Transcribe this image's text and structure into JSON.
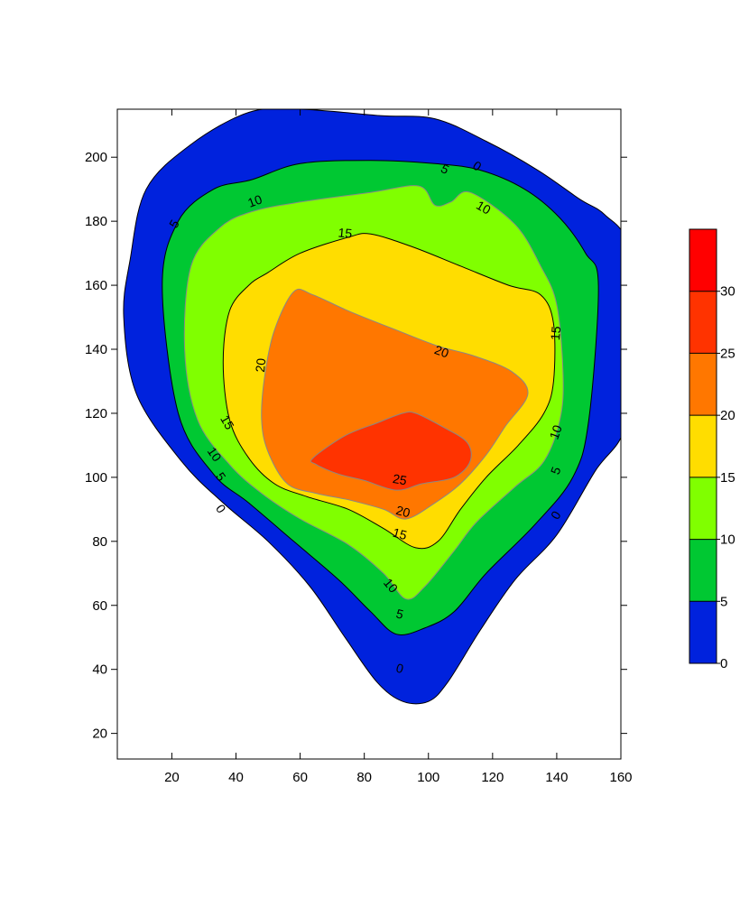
{
  "chart_data": {
    "type": "filled-contour",
    "title": "",
    "xlabel": "",
    "ylabel": "",
    "xlim": [
      3,
      160
    ],
    "ylim": [
      12,
      215
    ],
    "x_ticks": [
      20,
      40,
      60,
      80,
      100,
      120,
      140,
      160
    ],
    "y_ticks": [
      20,
      40,
      60,
      80,
      100,
      120,
      140,
      160,
      180,
      200
    ],
    "contour_levels": [
      0,
      5,
      10,
      15,
      20,
      25,
      30
    ],
    "colorbar": {
      "ticks": [
        0,
        5,
        10,
        15,
        20,
        25,
        30
      ],
      "range": [
        0,
        35
      ],
      "bands": [
        {
          "from": 0,
          "to": 5,
          "color": "#0022DD"
        },
        {
          "from": 5,
          "to": 10,
          "color": "#00C832"
        },
        {
          "from": 10,
          "to": 15,
          "color": "#80FF00"
        },
        {
          "from": 15,
          "to": 20,
          "color": "#FFDD00"
        },
        {
          "from": 20,
          "to": 25,
          "color": "#FF7700"
        },
        {
          "from": 25,
          "to": 30,
          "color": "#FF3300"
        },
        {
          "from": 30,
          "to": 35,
          "color": "#FF0000"
        }
      ]
    },
    "regions": [
      {
        "level": 0,
        "color": "#0022DD",
        "outline": "#000000",
        "points": [
          [
            44,
            214
          ],
          [
            60,
            215
          ],
          [
            85,
            213
          ],
          [
            102,
            212
          ],
          [
            118,
            205
          ],
          [
            134,
            196
          ],
          [
            147,
            187
          ],
          [
            155,
            182
          ],
          [
            162,
            172
          ],
          [
            163,
            140
          ],
          [
            161,
            115
          ],
          [
            152,
            102
          ],
          [
            140,
            82
          ],
          [
            127,
            68
          ],
          [
            116,
            52
          ],
          [
            106,
            36
          ],
          [
            100,
            30
          ],
          [
            92,
            30
          ],
          [
            84,
            36
          ],
          [
            74,
            50
          ],
          [
            63,
            66
          ],
          [
            50,
            80
          ],
          [
            36,
            92
          ],
          [
            23,
            105
          ],
          [
            9,
            126
          ],
          [
            5,
            150
          ],
          [
            7,
            168
          ],
          [
            12,
            190
          ],
          [
            26,
            204
          ]
        ]
      },
      {
        "level": 5,
        "color": "#00C832",
        "outline": "#000000",
        "points": [
          [
            45,
            193
          ],
          [
            60,
            198
          ],
          [
            82,
            199
          ],
          [
            102,
            198
          ],
          [
            116,
            196
          ],
          [
            130,
            190
          ],
          [
            141,
            181
          ],
          [
            149,
            170
          ],
          [
            153,
            160
          ],
          [
            150,
            118
          ],
          [
            145,
            100
          ],
          [
            133,
            85
          ],
          [
            118,
            70
          ],
          [
            108,
            58
          ],
          [
            99,
            53
          ],
          [
            90,
            51
          ],
          [
            82,
            58
          ],
          [
            72,
            68
          ],
          [
            58,
            80
          ],
          [
            44,
            92
          ],
          [
            33,
            101
          ],
          [
            22,
            120
          ],
          [
            17,
            160
          ],
          [
            22,
            180
          ],
          [
            33,
            190
          ]
        ]
      },
      {
        "level": 10,
        "color": "#80FF00",
        "outline": "#888888",
        "points": [
          [
            45,
            183
          ],
          [
            60,
            186
          ],
          [
            82,
            189
          ],
          [
            97,
            191
          ],
          [
            102,
            185
          ],
          [
            107,
            186
          ],
          [
            113,
            189
          ],
          [
            127,
            179
          ],
          [
            135,
            166
          ],
          [
            140,
            154
          ],
          [
            142,
            132
          ],
          [
            141,
            118
          ],
          [
            136,
            105
          ],
          [
            127,
            97
          ],
          [
            115,
            86
          ],
          [
            108,
            77
          ],
          [
            99,
            66
          ],
          [
            93,
            62
          ],
          [
            86,
            70
          ],
          [
            75,
            79
          ],
          [
            60,
            87
          ],
          [
            48,
            95
          ],
          [
            38,
            104
          ],
          [
            28,
            118
          ],
          [
            24,
            140
          ],
          [
            26,
            166
          ],
          [
            35,
            178
          ]
        ]
      },
      {
        "level": 15,
        "color": "#FFDD00",
        "outline": "#000000",
        "points": [
          [
            50,
            164
          ],
          [
            60,
            170
          ],
          [
            75,
            175
          ],
          [
            82,
            176
          ],
          [
            95,
            172
          ],
          [
            110,
            166
          ],
          [
            125,
            160
          ],
          [
            135,
            157
          ],
          [
            139,
            148
          ],
          [
            139,
            130
          ],
          [
            136,
            120
          ],
          [
            128,
            110
          ],
          [
            118,
            100
          ],
          [
            110,
            90
          ],
          [
            103,
            80
          ],
          [
            96,
            78
          ],
          [
            86,
            84
          ],
          [
            75,
            90
          ],
          [
            62,
            94
          ],
          [
            52,
            98
          ],
          [
            44,
            106
          ],
          [
            38,
            118
          ],
          [
            36,
            136
          ],
          [
            38,
            152
          ],
          [
            44,
            160
          ]
        ]
      },
      {
        "level": 20,
        "color": "#FF7700",
        "outline": "#888888",
        "points": [
          [
            58,
            158
          ],
          [
            64,
            157
          ],
          [
            75,
            152
          ],
          [
            90,
            146
          ],
          [
            103,
            141
          ],
          [
            114,
            138
          ],
          [
            126,
            133
          ],
          [
            131,
            126
          ],
          [
            124,
            116
          ],
          [
            118,
            107
          ],
          [
            110,
            98
          ],
          [
            102,
            92
          ],
          [
            93,
            87
          ],
          [
            86,
            90
          ],
          [
            75,
            93
          ],
          [
            65,
            95
          ],
          [
            56,
            98
          ],
          [
            50,
            108
          ],
          [
            48,
            118
          ],
          [
            49,
            132
          ],
          [
            52,
            146
          ]
        ]
      },
      {
        "level": 25,
        "color": "#FF3300",
        "outline": "#888888",
        "points": [
          [
            64,
            106
          ],
          [
            74,
            113
          ],
          [
            84,
            117
          ],
          [
            92,
            120
          ],
          [
            96,
            120
          ],
          [
            104,
            116
          ],
          [
            112,
            111
          ],
          [
            113,
            105
          ],
          [
            108,
            100
          ],
          [
            98,
            98
          ],
          [
            90,
            96
          ],
          [
            80,
            99
          ],
          [
            72,
            101
          ],
          [
            65,
            104
          ]
        ]
      }
    ],
    "contour_labels": [
      {
        "text": "0",
        "x": 115,
        "y": 197,
        "angle": 35
      },
      {
        "text": "5",
        "x": 105,
        "y": 196,
        "angle": 28
      },
      {
        "text": "10",
        "x": 117,
        "y": 184,
        "angle": 30
      },
      {
        "text": "10",
        "x": 46,
        "y": 186,
        "angle": -20
      },
      {
        "text": "5",
        "x": 21,
        "y": 179,
        "angle": -60
      },
      {
        "text": "15",
        "x": 74,
        "y": 176,
        "angle": 5
      },
      {
        "text": "15",
        "x": 140,
        "y": 145,
        "angle": -85
      },
      {
        "text": "20",
        "x": 104,
        "y": 139,
        "angle": 20
      },
      {
        "text": "20",
        "x": 48,
        "y": 135,
        "angle": -85
      },
      {
        "text": "15",
        "x": 37,
        "y": 117,
        "angle": 60
      },
      {
        "text": "10",
        "x": 33,
        "y": 107,
        "angle": 55
      },
      {
        "text": "10",
        "x": 140,
        "y": 114,
        "angle": -70
      },
      {
        "text": "5",
        "x": 35,
        "y": 100,
        "angle": 55
      },
      {
        "text": "5",
        "x": 140,
        "y": 102,
        "angle": -70
      },
      {
        "text": "0",
        "x": 35,
        "y": 90,
        "angle": 55
      },
      {
        "text": "0",
        "x": 140,
        "y": 88,
        "angle": -60
      },
      {
        "text": "25",
        "x": 91,
        "y": 99,
        "angle": 10
      },
      {
        "text": "20",
        "x": 92,
        "y": 89,
        "angle": 15
      },
      {
        "text": "15",
        "x": 91,
        "y": 82,
        "angle": 15
      },
      {
        "text": "10",
        "x": 88,
        "y": 66,
        "angle": 50
      },
      {
        "text": "5",
        "x": 91,
        "y": 57,
        "angle": 15
      },
      {
        "text": "0",
        "x": 91,
        "y": 40,
        "angle": 15
      }
    ]
  }
}
